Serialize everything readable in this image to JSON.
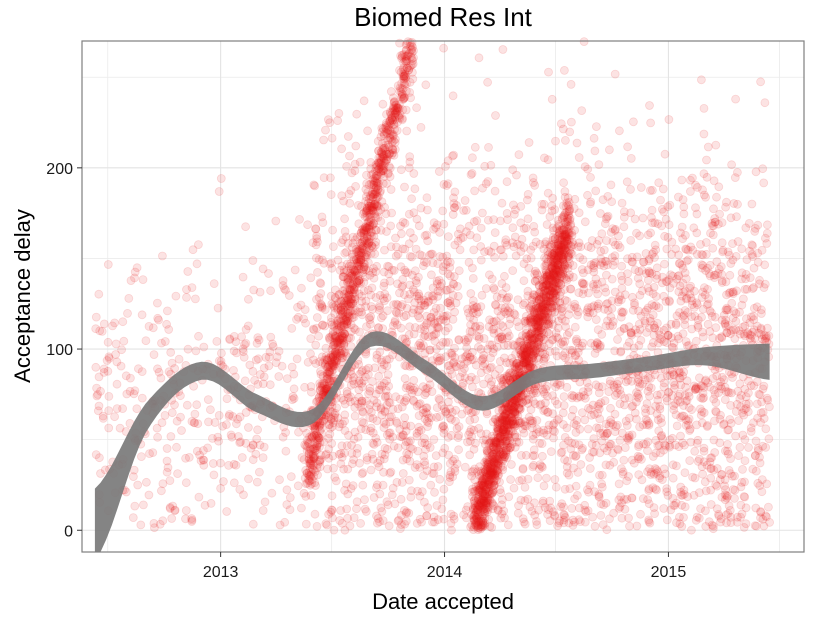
{
  "chart_data": {
    "type": "scatter",
    "title": "Biomed Res Int",
    "xlabel": "Date accepted",
    "ylabel": "Acceptance delay",
    "x_ticks": [
      "2013",
      "2014",
      "2015"
    ],
    "y_ticks": [
      0,
      100,
      200
    ],
    "xlim": [
      "2012-05-20",
      "2015-08-10"
    ],
    "ylim": [
      -12,
      270
    ],
    "grid": true,
    "legend": "none",
    "colors": {
      "points": "#e41a1c",
      "smooth_band": "#7a7a7a",
      "grid": "#ebebeb",
      "panel_border": "#7f7f7f"
    },
    "series": [
      {
        "kind": "points",
        "note_alpha": 0.12,
        "clusters": [
          {
            "x_start": "2012-06-10",
            "x_end": "2013-06-01",
            "y_mean": 75,
            "y_sd": 40,
            "count": 420
          },
          {
            "x_start": "2013-06-01",
            "x_end": "2015-06-15",
            "y_mean": 95,
            "y_sd": 55,
            "count": 3100
          },
          {
            "x_start": "2013-05-20",
            "x_end": "2013-11-10",
            "y_start": 30,
            "y_end": 270,
            "count": 900,
            "kind": "diagonal"
          },
          {
            "x_start": "2014-02-20",
            "x_end": "2014-07-25",
            "y_start": 5,
            "y_end": 170,
            "count": 1300,
            "kind": "diagonal"
          }
        ]
      },
      {
        "kind": "smooth",
        "x": [
          "2012-06-10",
          "2012-09-01",
          "2012-12-01",
          "2013-03-01",
          "2013-06-01",
          "2013-09-01",
          "2013-12-01",
          "2014-03-01",
          "2014-06-01",
          "2014-09-01",
          "2014-12-01",
          "2015-03-01",
          "2015-06-15"
        ],
        "y": [
          3,
          62,
          88,
          70,
          63,
          105,
          90,
          70,
          85,
          88,
          92,
          96,
          93
        ],
        "band_halfwidth": [
          20,
          8,
          5,
          5,
          4,
          4,
          4,
          4,
          4,
          4,
          4,
          5,
          10
        ]
      }
    ]
  }
}
